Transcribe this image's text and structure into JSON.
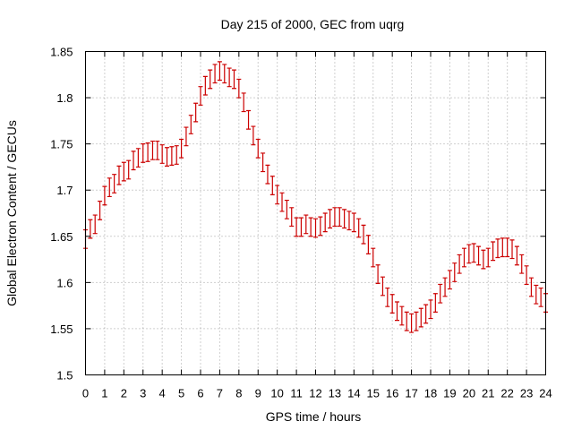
{
  "chart_data": {
    "type": "scatter",
    "title": "Day 215 of 2000, GEC from uqrg",
    "xlabel": "GPS time / hours",
    "ylabel": "Global Electron Content / GECUs",
    "xlim": [
      0,
      24
    ],
    "ylim": [
      1.5,
      1.85
    ],
    "xticks": [
      "0",
      "1",
      "2",
      "3",
      "4",
      "5",
      "6",
      "7",
      "8",
      "9",
      "10",
      "11",
      "12",
      "13",
      "14",
      "15",
      "16",
      "17",
      "18",
      "19",
      "20",
      "21",
      "22",
      "23",
      "24"
    ],
    "yticks": [
      "1.5",
      "1.55",
      "1.6",
      "1.65",
      "1.7",
      "1.75",
      "1.8",
      "1.85"
    ],
    "grid": true,
    "color": "#cc0000",
    "series": [
      {
        "error": 0.01,
        "points": [
          [
            0.0,
            1.647
          ],
          [
            0.25,
            1.658
          ],
          [
            0.5,
            1.663
          ],
          [
            0.75,
            1.678
          ],
          [
            1.0,
            1.694
          ],
          [
            1.25,
            1.703
          ],
          [
            1.5,
            1.707
          ],
          [
            1.75,
            1.716
          ],
          [
            2.0,
            1.72
          ],
          [
            2.25,
            1.722
          ],
          [
            2.5,
            1.732
          ],
          [
            2.75,
            1.735
          ],
          [
            3.0,
            1.74
          ],
          [
            3.25,
            1.741
          ],
          [
            3.5,
            1.743
          ],
          [
            3.75,
            1.743
          ],
          [
            4.0,
            1.739
          ],
          [
            4.25,
            1.736
          ],
          [
            4.5,
            1.737
          ],
          [
            4.75,
            1.738
          ],
          [
            5.0,
            1.745
          ],
          [
            5.25,
            1.758
          ],
          [
            5.5,
            1.771
          ],
          [
            5.75,
            1.784
          ],
          [
            6.0,
            1.802
          ],
          [
            6.25,
            1.813
          ],
          [
            6.5,
            1.82
          ],
          [
            6.75,
            1.826
          ],
          [
            7.0,
            1.829
          ],
          [
            7.25,
            1.826
          ],
          [
            7.5,
            1.822
          ],
          [
            7.75,
            1.82
          ],
          [
            8.0,
            1.81
          ],
          [
            8.25,
            1.795
          ],
          [
            8.5,
            1.776
          ],
          [
            8.75,
            1.759
          ],
          [
            9.0,
            1.745
          ],
          [
            9.25,
            1.73
          ],
          [
            9.5,
            1.717
          ],
          [
            9.75,
            1.705
          ],
          [
            10.0,
            1.695
          ],
          [
            10.25,
            1.687
          ],
          [
            10.5,
            1.679
          ],
          [
            10.75,
            1.671
          ],
          [
            11.0,
            1.66
          ],
          [
            11.25,
            1.66
          ],
          [
            11.5,
            1.663
          ],
          [
            11.75,
            1.66
          ],
          [
            12.0,
            1.659
          ],
          [
            12.25,
            1.661
          ],
          [
            12.5,
            1.665
          ],
          [
            12.75,
            1.669
          ],
          [
            13.0,
            1.671
          ],
          [
            13.25,
            1.671
          ],
          [
            13.5,
            1.669
          ],
          [
            13.75,
            1.667
          ],
          [
            14.0,
            1.665
          ],
          [
            14.25,
            1.659
          ],
          [
            14.5,
            1.652
          ],
          [
            14.75,
            1.641
          ],
          [
            15.0,
            1.627
          ],
          [
            15.25,
            1.609
          ],
          [
            15.5,
            1.596
          ],
          [
            15.75,
            1.584
          ],
          [
            16.0,
            1.577
          ],
          [
            16.25,
            1.569
          ],
          [
            16.5,
            1.564
          ],
          [
            16.75,
            1.558
          ],
          [
            17.0,
            1.556
          ],
          [
            17.25,
            1.558
          ],
          [
            17.5,
            1.562
          ],
          [
            17.75,
            1.566
          ],
          [
            18.0,
            1.571
          ],
          [
            18.25,
            1.578
          ],
          [
            18.5,
            1.588
          ],
          [
            18.75,
            1.595
          ],
          [
            19.0,
            1.603
          ],
          [
            19.25,
            1.611
          ],
          [
            19.5,
            1.62
          ],
          [
            19.75,
            1.627
          ],
          [
            20.0,
            1.631
          ],
          [
            20.25,
            1.632
          ],
          [
            20.5,
            1.629
          ],
          [
            20.75,
            1.625
          ],
          [
            21.0,
            1.627
          ],
          [
            21.25,
            1.634
          ],
          [
            21.5,
            1.637
          ],
          [
            21.75,
            1.638
          ],
          [
            22.0,
            1.638
          ],
          [
            22.25,
            1.636
          ],
          [
            22.5,
            1.629
          ],
          [
            22.75,
            1.62
          ],
          [
            23.0,
            1.608
          ],
          [
            23.25,
            1.595
          ],
          [
            23.5,
            1.587
          ],
          [
            23.75,
            1.584
          ],
          [
            24.0,
            1.578
          ]
        ]
      }
    ]
  }
}
